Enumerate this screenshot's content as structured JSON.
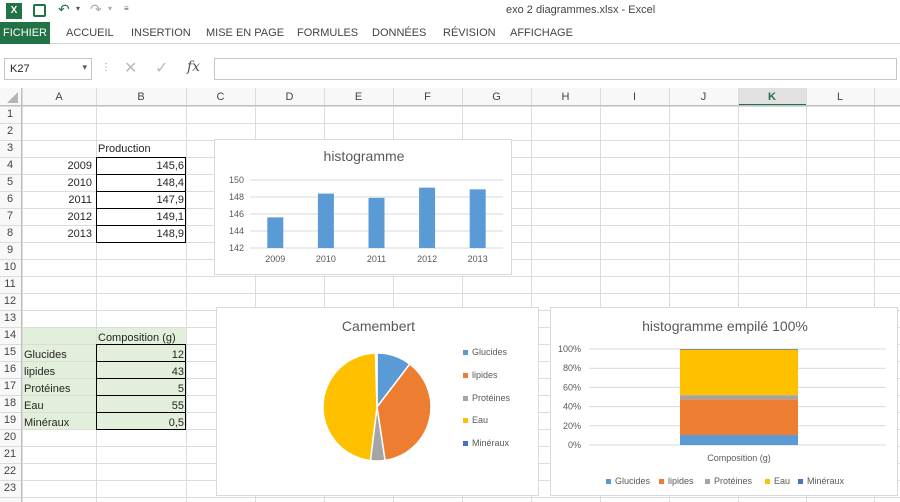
{
  "window": {
    "title": "exo 2 diagrammes.xlsx - Excel"
  },
  "ribbon": {
    "file": "FICHIER",
    "tabs": [
      "ACCUEIL",
      "INSERTION",
      "MISE EN PAGE",
      "FORMULES",
      "DONNÉES",
      "RÉVISION",
      "AFFICHAGE"
    ]
  },
  "formula_bar": {
    "name_box": "K27",
    "fx": "fx",
    "content": ""
  },
  "columns": [
    "A",
    "B",
    "C",
    "D",
    "E",
    "F",
    "G",
    "H",
    "I",
    "J",
    "K",
    "L"
  ],
  "selected_column": "K",
  "rows": [
    "1",
    "2",
    "3",
    "4",
    "5",
    "6",
    "7",
    "8",
    "9",
    "10",
    "11",
    "12",
    "13",
    "14",
    "15",
    "16",
    "17",
    "18",
    "19",
    "20",
    "21",
    "22",
    "23"
  ],
  "production": {
    "header": "Production",
    "years": [
      "2009",
      "2010",
      "2011",
      "2012",
      "2013"
    ],
    "values": [
      "145,6",
      "148,4",
      "147,9",
      "149,1",
      "148,9"
    ]
  },
  "composition": {
    "header": "Composition (g)",
    "labels": [
      "Glucides",
      "lipides",
      "Protéines",
      "Eau",
      "Minéraux"
    ],
    "values": [
      "12",
      "43",
      "5",
      "55",
      "0,5"
    ]
  },
  "colors": {
    "blue": "#5b9bd5",
    "orange": "#ed7d31",
    "gray": "#a5a5a5",
    "yellow": "#ffc000",
    "darkblue": "#4472c4",
    "excel_green": "#217346",
    "select_fill": "#e2efda"
  },
  "chart_data": [
    {
      "type": "bar",
      "title": "histogramme",
      "categories": [
        "2009",
        "2010",
        "2011",
        "2012",
        "2013"
      ],
      "values": [
        145.6,
        148.4,
        147.9,
        149.1,
        148.9
      ],
      "ylim": [
        142,
        150
      ],
      "yticks": [
        "142",
        "144",
        "146",
        "148",
        "150"
      ],
      "grid": true
    },
    {
      "type": "pie",
      "title": "Camembert",
      "categories": [
        "Glucides",
        "lipides",
        "Protéines",
        "Eau",
        "Minéraux"
      ],
      "values": [
        12,
        43,
        5,
        55,
        0.5
      ],
      "legend": "right"
    },
    {
      "type": "bar",
      "title": "histogramme empilé 100%",
      "categories": [
        "Composition (g)"
      ],
      "series": [
        {
          "name": "Glucides",
          "values": [
            12
          ]
        },
        {
          "name": "lipides",
          "values": [
            43
          ]
        },
        {
          "name": "Protéines",
          "values": [
            5
          ]
        },
        {
          "name": "Eau",
          "values": [
            55
          ]
        },
        {
          "name": "Minéraux",
          "values": [
            0.5
          ]
        }
      ],
      "yticks": [
        "0%",
        "20%",
        "40%",
        "60%",
        "80%",
        "100%"
      ],
      "stacked": "percent",
      "legend": "bottom"
    }
  ]
}
